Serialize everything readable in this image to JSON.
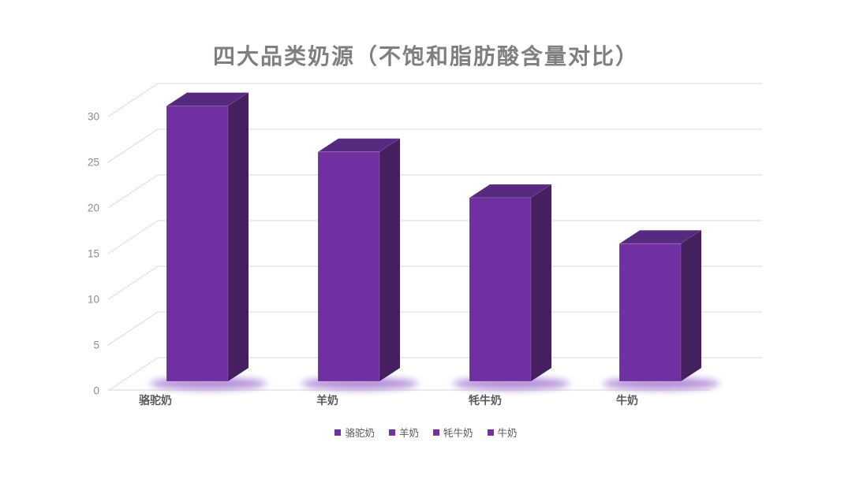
{
  "chart_data": {
    "type": "bar",
    "style": "3d-column",
    "title": "四大品类奶源（不饱和脂肪酸含量对比）",
    "categories": [
      "骆驼奶",
      "羊奶",
      "牦牛奶",
      "牛奶"
    ],
    "values": [
      30,
      25,
      20,
      15
    ],
    "series": [
      {
        "name": "骆驼奶",
        "value": 30
      },
      {
        "name": "羊奶",
        "value": 25
      },
      {
        "name": "牦牛奶",
        "value": 20
      },
      {
        "name": "牛奶",
        "value": 15
      }
    ],
    "xlabel": "",
    "ylabel": "",
    "ylim": [
      0,
      30
    ],
    "yticks": [
      0,
      5,
      10,
      15,
      20,
      25,
      30
    ],
    "grid": true,
    "legend": [
      "骆驼奶",
      "羊奶",
      "牦牛奶",
      "牛奶"
    ],
    "legend_position": "bottom"
  },
  "colors": {
    "bar_front": "#7130A2",
    "bar_top": "#562A7E",
    "bar_side": "#44205F",
    "bar_glow": "#A77FD2",
    "gridline": "#D9D9D9",
    "baseline": "#D4D4D4",
    "title_text": "#7F7F7F",
    "tick_text": "#8C8C8C",
    "category_text": "#595959",
    "legend_text": "#595959",
    "legend_swatch": "#7130A2",
    "background": "#FFFFFF"
  }
}
